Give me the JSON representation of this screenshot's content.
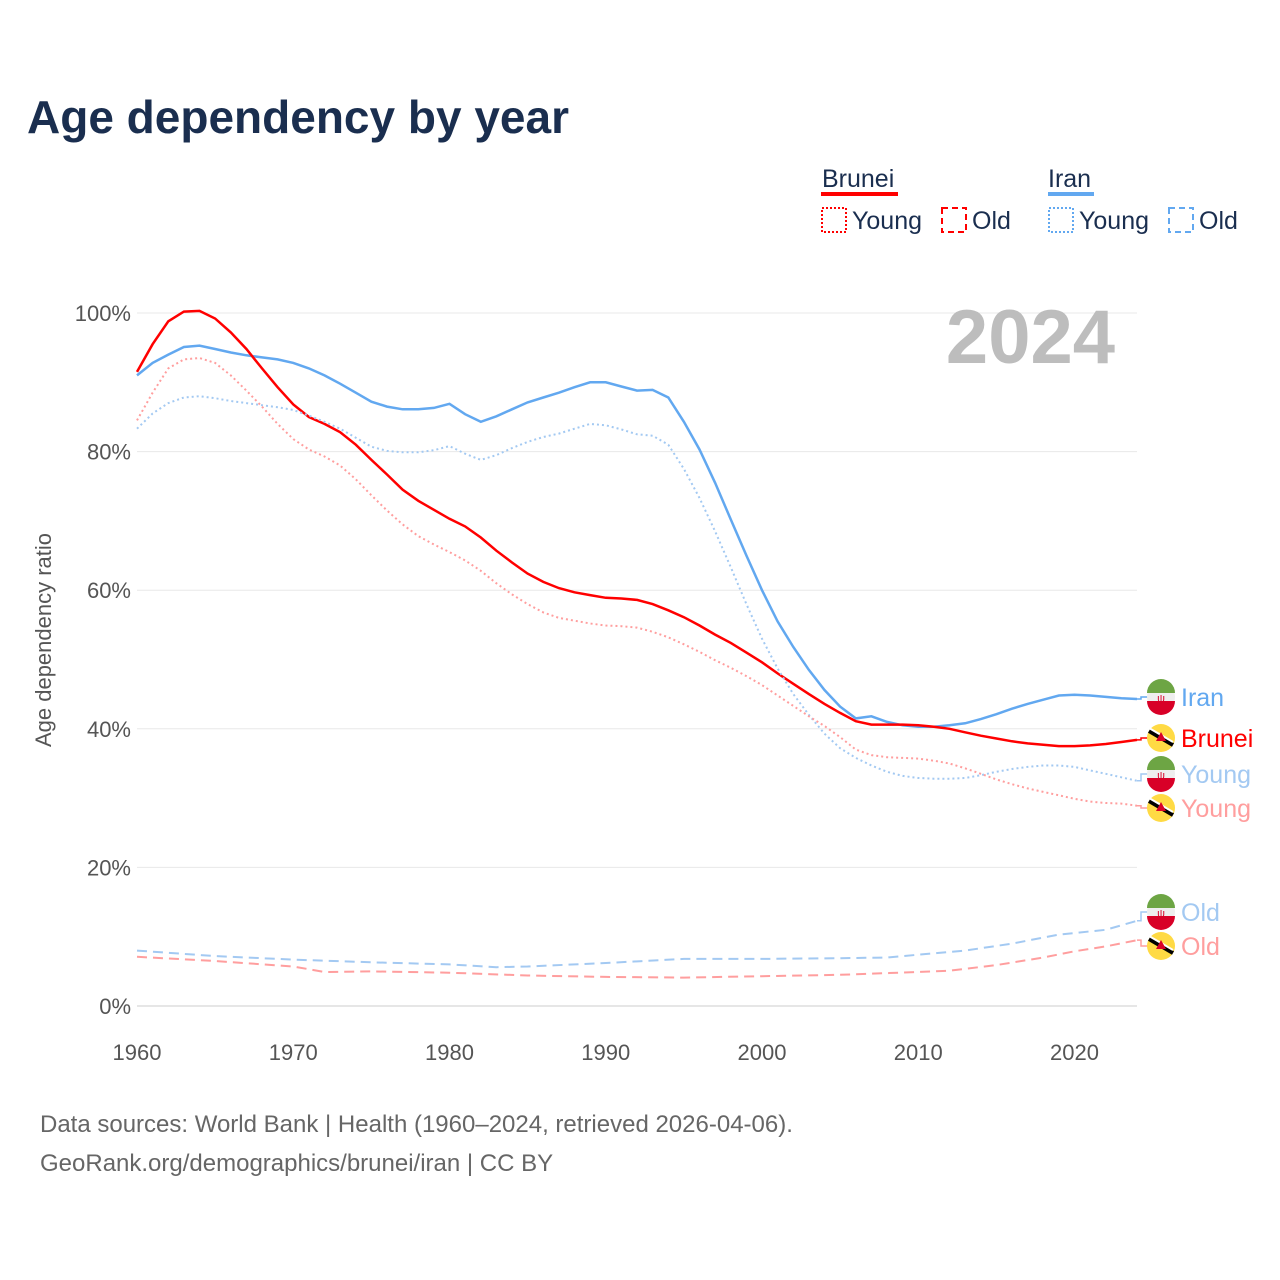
{
  "title": "Age dependency by year",
  "year_watermark": "2024",
  "legend": {
    "groups": [
      {
        "name": "Brunei",
        "color": "#ff0000",
        "young": "Young",
        "old": "Old"
      },
      {
        "name": "Iran",
        "color": "#62a8f0",
        "young": "Young",
        "old": "Old"
      }
    ]
  },
  "footer": {
    "line1": "Data sources: World Bank | Health (1960–2024, retrieved 2026-04-06).",
    "line2": "GeoRank.org/demographics/brunei/iran | CC BY"
  },
  "chart_data": {
    "type": "line",
    "title": "Age dependency by year",
    "xlabel": "",
    "ylabel": "Age dependency ratio",
    "xlim": [
      1960,
      2024
    ],
    "ylim": [
      0,
      100
    ],
    "x_ticks": [
      "1960",
      "1970",
      "1980",
      "1990",
      "2000",
      "2010",
      "2020"
    ],
    "y_ticks": [
      "0%",
      "20%",
      "40%",
      "60%",
      "80%",
      "100%"
    ],
    "grid": true,
    "legend_position": "top-right",
    "series": [
      {
        "name": "Iran",
        "country": "Iran",
        "kind": "total",
        "color": "#62a8f0",
        "dash": "solid",
        "end_label": "Iran",
        "start": 1960,
        "y": [
          91,
          92.8,
          94,
          95.1,
          95.3,
          94.8,
          94.3,
          93.9,
          93.6,
          93.3,
          92.8,
          92,
          91,
          89.8,
          88.5,
          87.2,
          86.5,
          86.1,
          86.1,
          86.3,
          86.9,
          85.4,
          84.3,
          85.1,
          86.1,
          87.1,
          87.8,
          88.5,
          89.3,
          90,
          90,
          89.4,
          88.8,
          88.9,
          87.8,
          84.3,
          80.3,
          75.5,
          70.2,
          65,
          60,
          55.5,
          51.8,
          48.5,
          45.6,
          43.2,
          41.5,
          41.8,
          41,
          40.5,
          40.3,
          40.3,
          40.5,
          40.8,
          41.4,
          42.1,
          42.9,
          43.6,
          44.2,
          44.8,
          44.9,
          44.8,
          44.6,
          44.4,
          44.3
        ]
      },
      {
        "name": "Brunei",
        "country": "Brunei",
        "kind": "total",
        "color": "#ff0000",
        "dash": "solid",
        "end_label": "Brunei",
        "start": 1960,
        "y": [
          91.5,
          95.5,
          98.8,
          100.2,
          100.3,
          99.2,
          97.2,
          94.8,
          92,
          89.3,
          86.8,
          85,
          84,
          82.8,
          81,
          78.8,
          76.7,
          74.5,
          72.9,
          71.6,
          70.3,
          69.2,
          67.6,
          65.7,
          64,
          62.4,
          61.2,
          60.3,
          59.7,
          59.3,
          58.9,
          58.8,
          58.6,
          58,
          57.1,
          56.1,
          54.9,
          53.6,
          52.4,
          51,
          49.6,
          48,
          46.5,
          45,
          43.6,
          42.3,
          41.1,
          40.6,
          40.6,
          40.6,
          40.5,
          40.3,
          40,
          39.5,
          39,
          38.6,
          38.2,
          37.9,
          37.7,
          37.5,
          37.5,
          37.6,
          37.8,
          38.1,
          38.4
        ]
      },
      {
        "name": "Iran Young",
        "country": "Iran",
        "kind": "young",
        "color": "#a3c9f2",
        "dash": "dotted",
        "end_label": "Young",
        "start": 1960,
        "y": [
          83.3,
          85.5,
          87,
          87.8,
          88,
          87.7,
          87.3,
          87,
          86.7,
          86.4,
          86,
          85.2,
          84.3,
          83.3,
          82,
          80.7,
          80.1,
          79.9,
          79.9,
          80.2,
          80.8,
          79.7,
          78.8,
          79.5,
          80.5,
          81.4,
          82.1,
          82.6,
          83.3,
          84,
          83.8,
          83.2,
          82.5,
          82.3,
          81,
          77.5,
          73.3,
          68.5,
          63.3,
          58,
          53,
          48.7,
          45,
          42,
          39.3,
          37.2,
          35.8,
          34.7,
          33.8,
          33.2,
          32.9,
          32.8,
          32.8,
          32.9,
          33.3,
          33.8,
          34.2,
          34.5,
          34.7,
          34.7,
          34.5,
          34,
          33.5,
          33,
          32.5
        ]
      },
      {
        "name": "Brunei Young",
        "country": "Brunei",
        "kind": "young",
        "color": "#ff9e9e",
        "dash": "dotted",
        "end_label": "Young",
        "start": 1960,
        "y": [
          84.5,
          88.5,
          92,
          93.3,
          93.5,
          92.8,
          91,
          88.8,
          86.5,
          84,
          81.8,
          80.3,
          79.3,
          78,
          76,
          73.7,
          71.5,
          69.5,
          67.8,
          66.6,
          65.5,
          64.3,
          62.8,
          61,
          59.4,
          58,
          56.8,
          56,
          55.6,
          55.2,
          54.9,
          54.8,
          54.6,
          54,
          53.2,
          52.2,
          51.1,
          49.9,
          48.8,
          47.6,
          46.3,
          44.8,
          43.3,
          41.8,
          40.4,
          38.8,
          37,
          36.2,
          35.9,
          35.8,
          35.7,
          35.4,
          35,
          34.3,
          33.5,
          32.7,
          32,
          31.4,
          30.9,
          30.4,
          29.9,
          29.5,
          29.3,
          29.2,
          28.9
        ]
      },
      {
        "name": "Iran Old",
        "country": "Iran",
        "kind": "old",
        "color": "#a3c9f2",
        "dash": "dashed",
        "end_label": "Old",
        "x": [
          1960,
          1965,
          1970,
          1975,
          1980,
          1983,
          1985,
          1990,
          1995,
          2000,
          2005,
          2008,
          2010,
          2013,
          2016,
          2019,
          2022,
          2024
        ],
        "y": [
          8.0,
          7.2,
          6.7,
          6.3,
          6.0,
          5.6,
          5.7,
          6.2,
          6.8,
          6.8,
          6.9,
          7.0,
          7.4,
          8.0,
          9.0,
          10.3,
          11.0,
          12.3
        ]
      },
      {
        "name": "Brunei Old",
        "country": "Brunei",
        "kind": "old",
        "color": "#ff9e9e",
        "dash": "dashed",
        "end_label": "Old",
        "x": [
          1960,
          1965,
          1970,
          1972,
          1975,
          1980,
          1985,
          1990,
          1995,
          2000,
          2005,
          2010,
          2012,
          2015,
          2018,
          2020,
          2022,
          2024
        ],
        "y": [
          7.1,
          6.5,
          5.7,
          4.9,
          5.0,
          4.8,
          4.4,
          4.2,
          4.1,
          4.3,
          4.5,
          4.9,
          5.1,
          5.9,
          7.0,
          7.9,
          8.6,
          9.5
        ]
      }
    ]
  }
}
